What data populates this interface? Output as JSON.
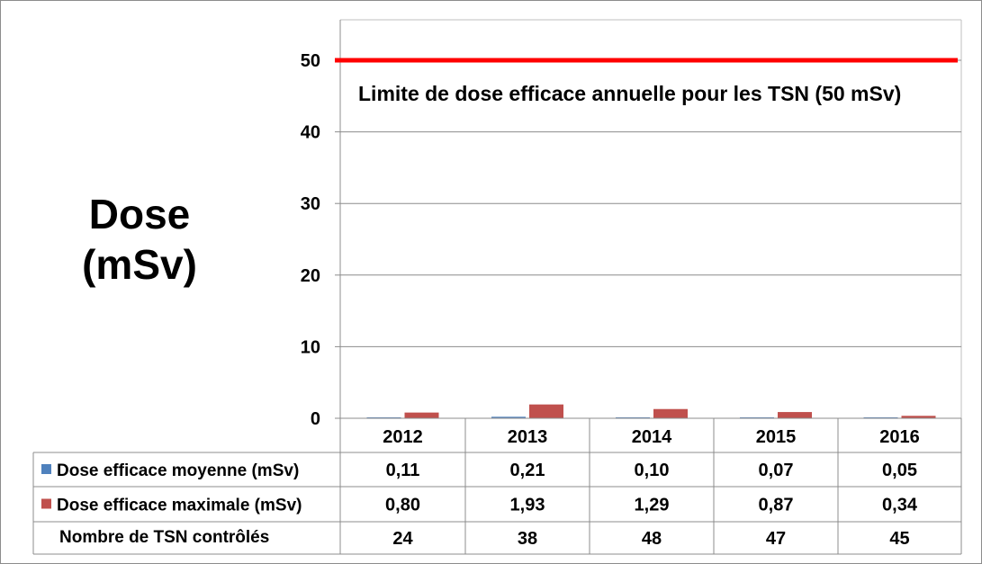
{
  "chart_data": {
    "type": "bar",
    "ylabel_line1": "Dose",
    "ylabel_line2": "(mSv)",
    "ylim": [
      0,
      53
    ],
    "yticks": [
      0,
      10,
      20,
      30,
      40,
      50
    ],
    "grid": true,
    "categories": [
      "2012",
      "2013",
      "2014",
      "2015",
      "2016"
    ],
    "series": [
      {
        "name": "Dose efficace moyenne (mSv)",
        "color": "#4f81bd",
        "values": [
          0.11,
          0.21,
          0.1,
          0.07,
          0.05
        ],
        "labels": [
          "0,11",
          "0,21",
          "0,10",
          "0,07",
          "0,05"
        ]
      },
      {
        "name": "Dose efficace maximale (mSv)",
        "color": "#c0504d",
        "values": [
          0.8,
          1.93,
          1.29,
          0.87,
          0.34
        ],
        "labels": [
          "0,80",
          "1,93",
          "1,29",
          "0,87",
          "0,34"
        ]
      }
    ],
    "extra_row": {
      "name": "Nombre de TSN contrôlés",
      "values": [
        "24",
        "38",
        "48",
        "47",
        "45"
      ]
    },
    "limit_line": {
      "value": 50,
      "color": "#ff0000",
      "label": "Limite de dose efficace annuelle pour les TSN (50 mSv)"
    },
    "legend": "table"
  }
}
